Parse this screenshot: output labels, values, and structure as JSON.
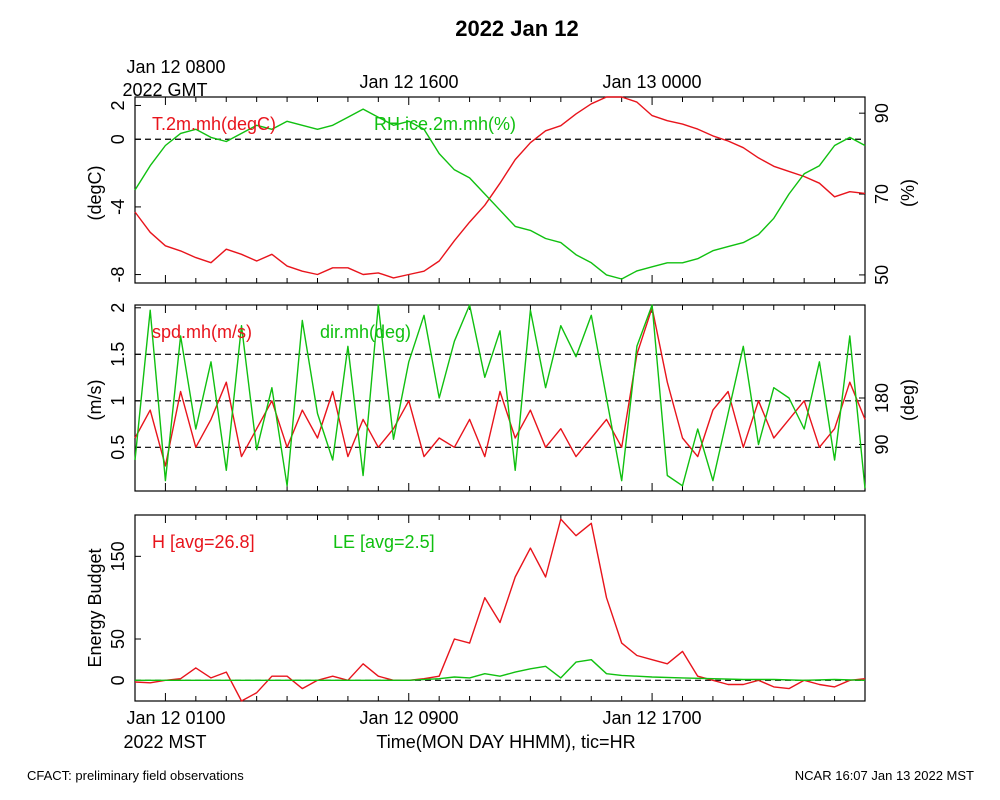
{
  "title": "2022 Jan 12",
  "top_axis": {
    "labels": [
      "Jan 12 0800",
      "Jan 12 1600",
      "Jan 13 0000"
    ],
    "sublabel": "2022 GMT"
  },
  "bottom_axis": {
    "labels": [
      "Jan 12 0100",
      "Jan 12 0900",
      "Jan 12 1700"
    ],
    "sublabel": "2022 MST",
    "title": "Time(MON DAY HHMM), tic=HR"
  },
  "footer": {
    "left": "CFACT: preliminary field observations",
    "right": "NCAR 16:07 Jan 13 2022 MST"
  },
  "colors": {
    "red": "#e8141c",
    "green": "#10c010",
    "axis": "#000000"
  },
  "chart_data": [
    {
      "type": "line",
      "title": "",
      "x_range_hours": [
        0,
        24
      ],
      "ylabel": "(degC)",
      "ylim": [
        -8.5,
        2.5
      ],
      "yticks": [
        -8,
        -4,
        0,
        2
      ],
      "y2label": "(%)",
      "y2lim": [
        48,
        94
      ],
      "y2ticks": [
        50,
        70,
        90
      ],
      "ref_lines_y": [
        0
      ],
      "legend": [
        "T.2m.mh(degC)",
        "RH.ice.2m.mh(%)"
      ],
      "series": [
        {
          "name": "T.2m.mh(degC)",
          "axis": "left",
          "color": "red",
          "x": [
            0,
            0.5,
            1,
            1.5,
            2,
            2.5,
            3,
            3.5,
            4,
            4.5,
            5,
            5.5,
            6,
            6.5,
            7,
            7.5,
            8,
            8.5,
            9,
            9.5,
            10,
            10.5,
            11,
            11.5,
            12,
            12.5,
            13,
            13.5,
            14,
            14.5,
            15,
            15.5,
            16,
            16.5,
            17,
            17.5,
            18,
            18.5,
            19,
            19.5,
            20,
            20.5,
            21,
            21.5,
            22,
            22.5,
            23,
            23.5,
            24
          ],
          "values": [
            -4.3,
            -5.5,
            -6.3,
            -6.6,
            -7.0,
            -7.3,
            -6.5,
            -6.8,
            -7.2,
            -6.8,
            -7.5,
            -7.8,
            -8.0,
            -7.6,
            -7.6,
            -8.0,
            -7.9,
            -8.2,
            -8.0,
            -7.8,
            -7.2,
            -6.0,
            -4.9,
            -3.9,
            -2.6,
            -1.2,
            -0.2,
            0.5,
            0.8,
            1.5,
            2.1,
            2.8,
            2.6,
            2.2,
            1.4,
            1.1,
            0.9,
            0.6,
            0.2,
            -0.1,
            -0.5,
            -1.1,
            -1.6,
            -1.9,
            -2.2,
            -2.6,
            -3.4,
            -3.1,
            -3.2
          ]
        },
        {
          "name": "RH.ice.2m.mh(%)",
          "axis": "right",
          "color": "green",
          "x": [
            0,
            0.5,
            1,
            1.5,
            2,
            2.5,
            3,
            3.5,
            4,
            4.5,
            5,
            5.5,
            6,
            6.5,
            7,
            7.5,
            8,
            8.5,
            9,
            9.5,
            10,
            10.5,
            11,
            11.5,
            12,
            12.5,
            13,
            13.5,
            14,
            14.5,
            15,
            15.5,
            16,
            16.5,
            17,
            17.5,
            18,
            18.5,
            19,
            19.5,
            20,
            20.5,
            21,
            21.5,
            22,
            22.5,
            23,
            23.5,
            24
          ],
          "values": [
            71,
            77,
            82,
            85,
            86,
            84,
            83,
            85,
            87,
            86,
            88,
            87,
            86,
            87,
            89,
            91,
            89,
            87,
            88,
            86,
            80,
            76,
            74,
            70,
            66,
            62,
            61,
            59,
            58,
            55,
            53,
            50,
            49,
            51,
            52,
            53,
            53,
            54,
            56,
            57,
            58,
            60,
            64,
            70,
            75,
            77,
            82,
            84,
            82
          ]
        }
      ]
    },
    {
      "type": "line",
      "title": "",
      "x_range_hours": [
        0,
        24
      ],
      "ylabel": "(m/s)",
      "ylim": [
        0.03,
        2.03
      ],
      "yticks": [
        0.5,
        1.0,
        1.5,
        2.0
      ],
      "y2label": "(deg)",
      "y2lim": [
        0,
        360
      ],
      "y2ticks": [
        90,
        180
      ],
      "ref_lines_y": [
        0.5,
        1.0,
        1.5
      ],
      "legend": [
        "spd.mh(m/s)",
        "dir.mh(deg)"
      ],
      "series": [
        {
          "name": "spd.mh(m/s)",
          "axis": "left",
          "color": "red",
          "x": [
            0,
            0.5,
            1,
            1.5,
            2,
            2.5,
            3,
            3.5,
            4,
            4.5,
            5,
            5.5,
            6,
            6.5,
            7,
            7.5,
            8,
            8.5,
            9,
            9.5,
            10,
            10.5,
            11,
            11.5,
            12,
            12.5,
            13,
            13.5,
            14,
            14.5,
            15,
            15.5,
            16,
            16.5,
            17,
            17.5,
            18,
            18.5,
            19,
            19.5,
            20,
            20.5,
            21,
            21.5,
            22,
            22.5,
            23,
            23.5,
            24
          ],
          "values": [
            0.6,
            0.9,
            0.3,
            1.1,
            0.5,
            0.8,
            1.2,
            0.4,
            0.7,
            1.0,
            0.5,
            0.9,
            0.6,
            1.1,
            0.4,
            0.8,
            0.5,
            0.7,
            1.0,
            0.4,
            0.6,
            0.5,
            0.8,
            0.4,
            1.1,
            0.6,
            0.9,
            0.5,
            0.7,
            0.4,
            0.6,
            0.8,
            0.5,
            1.5,
            2.0,
            1.2,
            0.6,
            0.4,
            0.9,
            1.1,
            0.5,
            1.0,
            0.6,
            0.8,
            1.0,
            0.5,
            0.7,
            1.2,
            0.8
          ]
        },
        {
          "name": "dir.mh(deg)",
          "axis": "right",
          "color": "green",
          "x": [
            0,
            0.5,
            1,
            1.5,
            2,
            2.5,
            3,
            3.5,
            4,
            4.5,
            5,
            5.5,
            6,
            6.5,
            7,
            7.5,
            8,
            8.5,
            9,
            9.5,
            10,
            10.5,
            11,
            11.5,
            12,
            12.5,
            13,
            13.5,
            14,
            14.5,
            15,
            15.5,
            16,
            16.5,
            17,
            17.5,
            18,
            18.5,
            19,
            19.5,
            20,
            20.5,
            21,
            21.5,
            22,
            22.5,
            23,
            23.5,
            24
          ],
          "values": [
            60,
            350,
            20,
            300,
            120,
            250,
            40,
            320,
            80,
            200,
            10,
            330,
            150,
            60,
            280,
            30,
            360,
            100,
            250,
            340,
            180,
            290,
            360,
            220,
            310,
            40,
            350,
            200,
            320,
            260,
            340,
            180,
            20,
            280,
            360,
            30,
            10,
            120,
            20,
            150,
            280,
            90,
            200,
            180,
            120,
            250,
            60,
            300,
            5
          ]
        }
      ]
    },
    {
      "type": "line",
      "title": "",
      "x_range_hours": [
        0,
        24
      ],
      "ylabel": "Energy Budget",
      "ylim": [
        -25,
        200
      ],
      "yticks": [
        0,
        50,
        150
      ],
      "ref_lines_y": [
        0
      ],
      "legend": [
        "H [avg=26.8]",
        "LE [avg=2.5]"
      ],
      "series": [
        {
          "name": "H [avg=26.8]",
          "color": "red",
          "x": [
            0,
            0.5,
            1,
            1.5,
            2,
            2.5,
            3,
            3.5,
            4,
            4.5,
            5,
            5.5,
            6,
            6.5,
            7,
            7.5,
            8,
            8.5,
            9,
            9.5,
            10,
            10.5,
            11,
            11.5,
            12,
            12.5,
            13,
            13.5,
            14,
            14.5,
            15,
            15.5,
            16,
            16.5,
            17,
            17.5,
            18,
            18.5,
            19,
            19.5,
            20,
            20.5,
            21,
            21.5,
            22,
            22.5,
            23,
            23.5,
            24
          ],
          "values": [
            -2,
            -3,
            0,
            2,
            15,
            3,
            10,
            -25,
            -15,
            5,
            5,
            -10,
            0,
            5,
            0,
            20,
            5,
            0,
            0,
            2,
            5,
            50,
            45,
            100,
            70,
            125,
            160,
            125,
            195,
            175,
            190,
            100,
            45,
            30,
            25,
            20,
            35,
            5,
            0,
            -5,
            -5,
            0,
            -8,
            -10,
            0,
            -5,
            -8,
            0,
            2
          ]
        },
        {
          "name": "LE [avg=2.5]",
          "color": "green",
          "x": [
            0,
            1,
            2,
            3,
            4,
            5,
            6,
            7,
            8,
            9,
            10,
            10.5,
            11,
            11.5,
            12,
            12.5,
            13,
            13.5,
            14,
            14.5,
            15,
            15.5,
            16,
            17,
            18,
            19,
            20,
            21,
            22,
            23,
            24
          ],
          "values": [
            0,
            0,
            0,
            0,
            0,
            0,
            0,
            0,
            0,
            0,
            2,
            4,
            3,
            8,
            5,
            10,
            14,
            17,
            3,
            22,
            25,
            8,
            6,
            4,
            3,
            2,
            1,
            1,
            0,
            1,
            0
          ]
        }
      ]
    }
  ]
}
